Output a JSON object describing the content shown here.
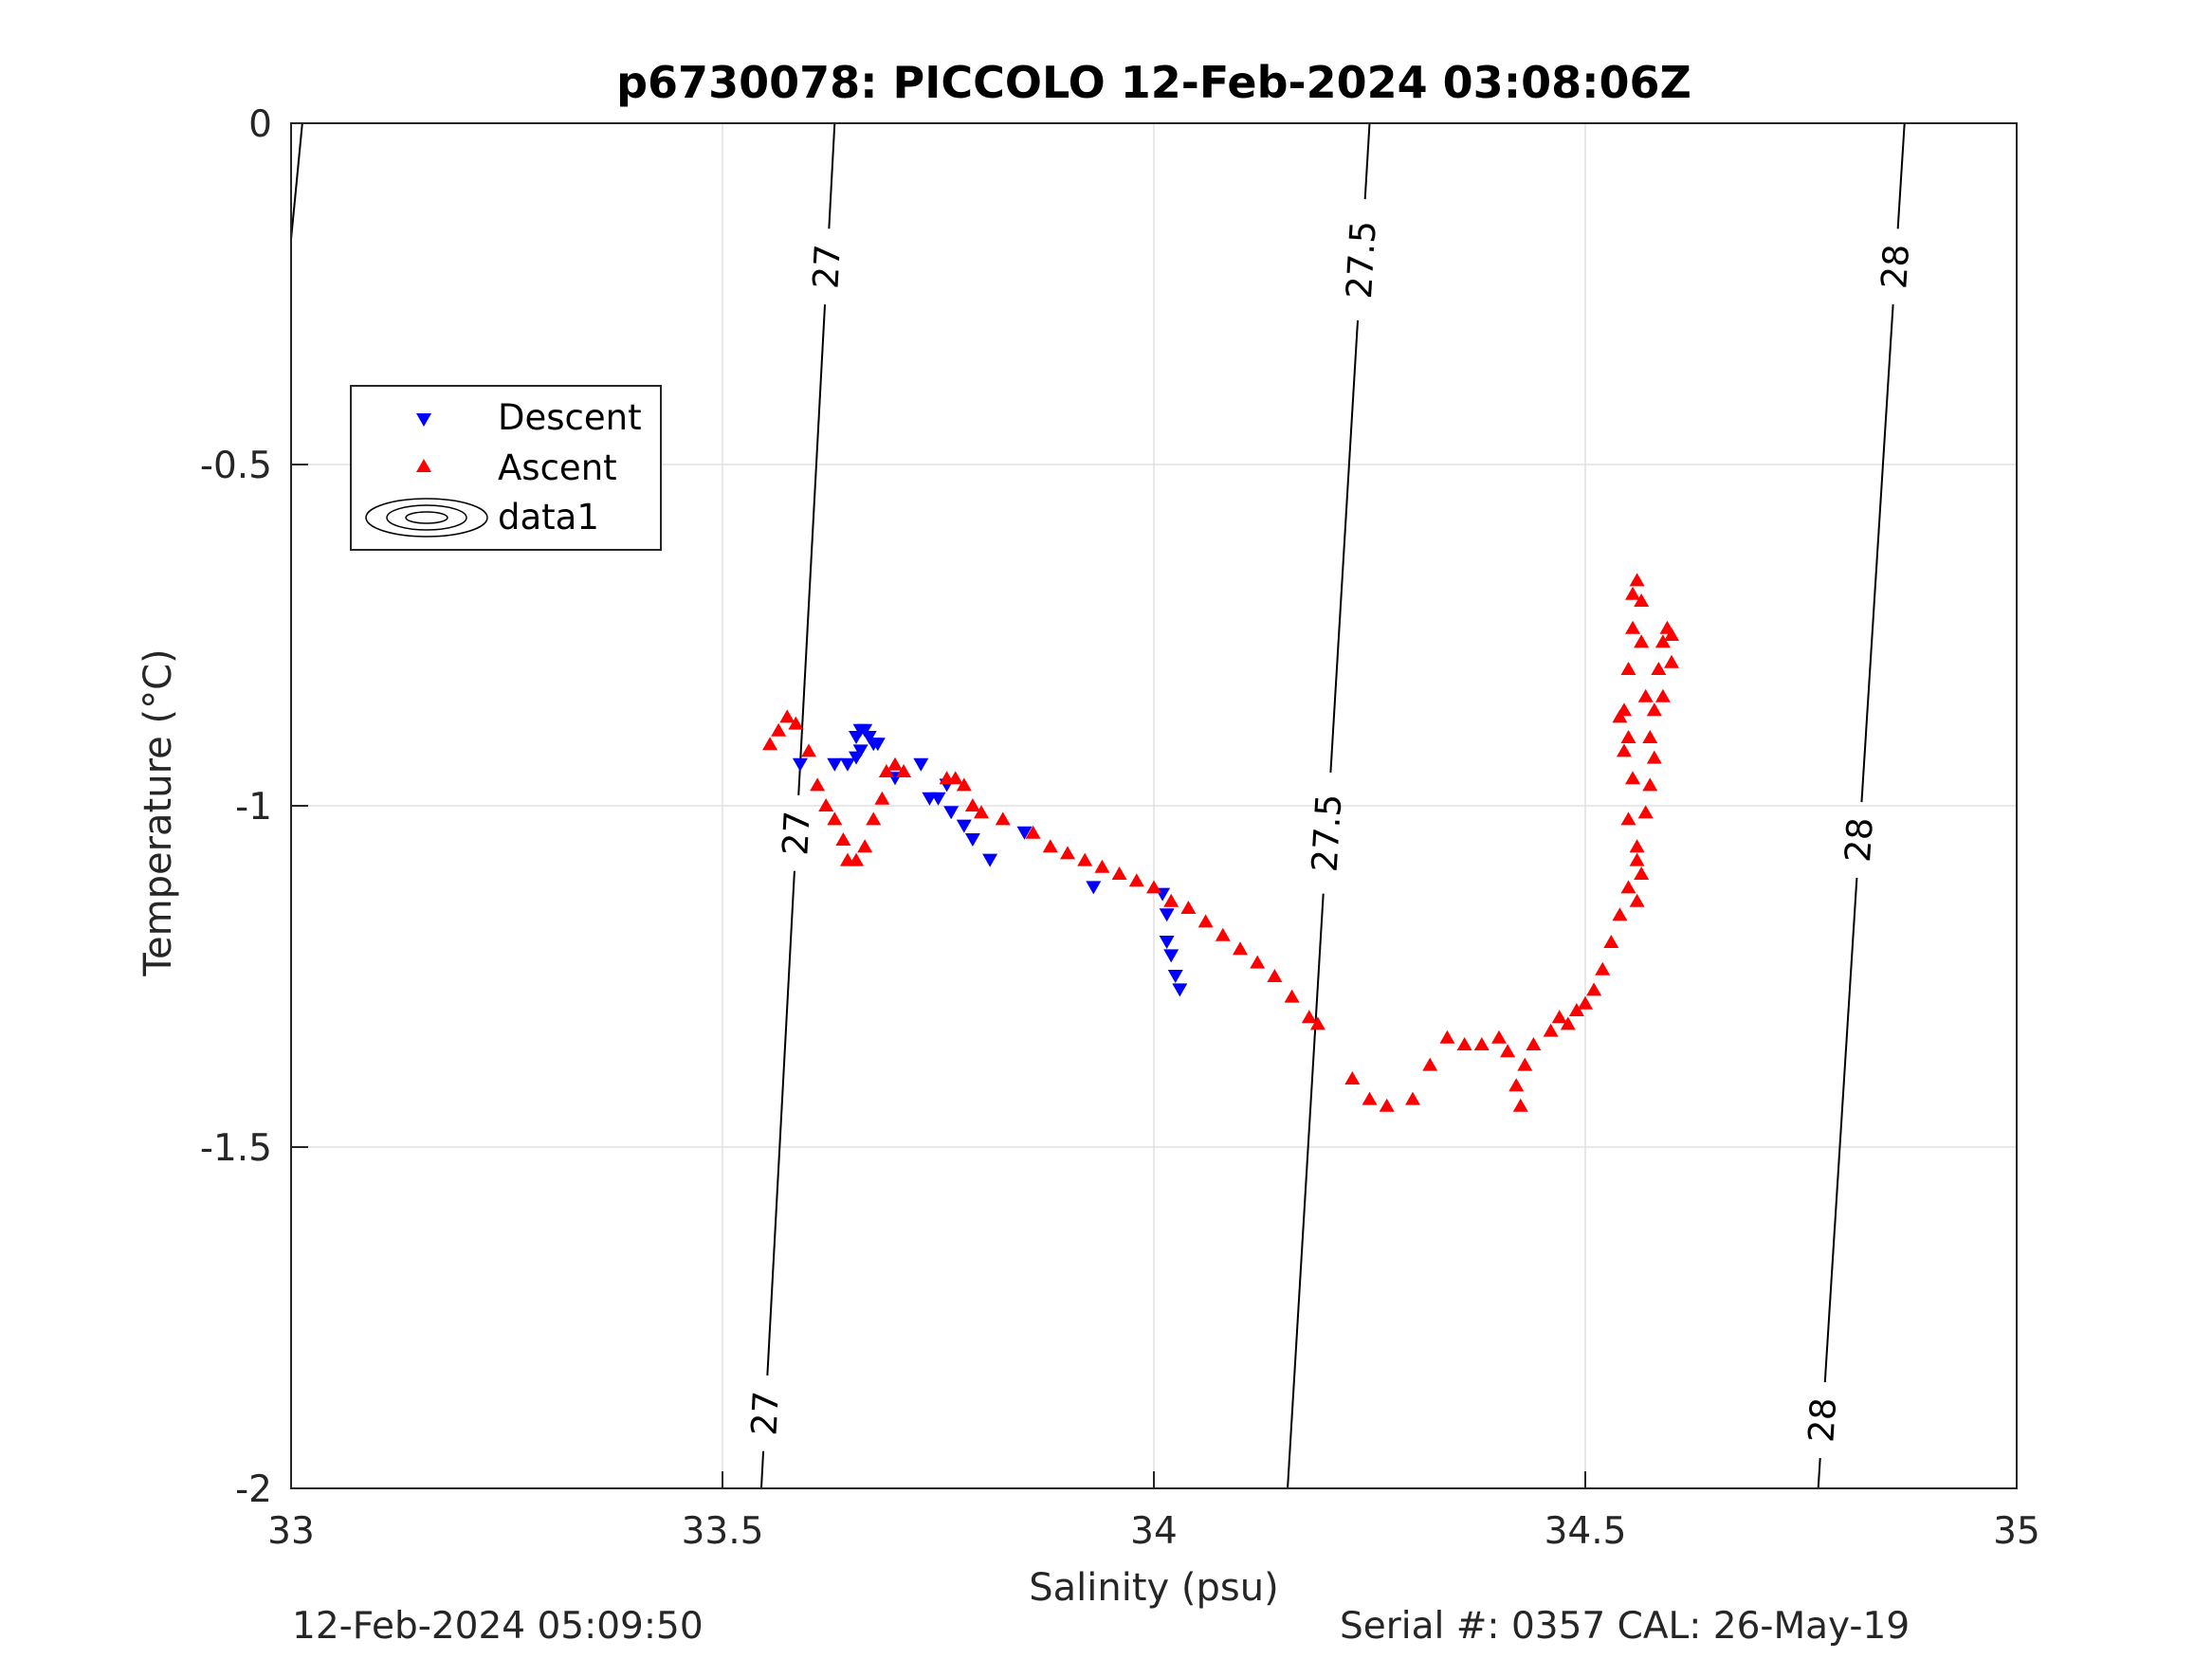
{
  "footer": {
    "timestamp": "12-Feb-2024 05:09:50",
    "serial": "Serial #: 0357  CAL: 26-May-19"
  },
  "chart_data": {
    "type": "scatter",
    "title": "p6730078: PICCOLO 12-Feb-2024 03:08:06Z",
    "xlabel": "Salinity (psu)",
    "ylabel": "Temperature (°C)",
    "xlim": [
      33,
      35
    ],
    "ylim": [
      -2,
      0
    ],
    "xticks": [
      33,
      33.5,
      34,
      34.5,
      35
    ],
    "xtick_labels": [
      "33",
      "33.5",
      "34",
      "34.5",
      "35"
    ],
    "yticks": [
      -2,
      -1.5,
      -1,
      -0.5,
      0
    ],
    "ytick_labels": [
      "-2",
      "-1.5",
      "-1",
      "-0.5",
      "0"
    ],
    "grid": true,
    "legend": {
      "position": "top-left",
      "entries": [
        "Descent",
        "Ascent",
        "data1"
      ]
    },
    "colors": {
      "descent": "#0000ff",
      "ascent": "#ff0000",
      "contour": "#000000",
      "grid": "#e0e0e0"
    },
    "contours": [
      {
        "level": 27,
        "label": "27",
        "bottom_salinity": 33.545,
        "top_salinity": 33.63,
        "label_temps": [
          -0.21,
          -1.04,
          -1.89
        ]
      },
      {
        "level": 27.5,
        "label": "27.5",
        "bottom_salinity": 34.155,
        "top_salinity": 34.25,
        "label_temps": [
          -0.2,
          -1.04
        ]
      },
      {
        "level": 28,
        "label": "28",
        "bottom_salinity": 34.77,
        "top_salinity": 34.87,
        "label_temps": [
          -0.21,
          -1.05,
          -1.9
        ]
      },
      {
        "level": 26.5,
        "label": "",
        "bottom_salinity": 33.0,
        "top_salinity": 33.013,
        "bottom_temp": -0.17,
        "label_temps": []
      }
    ],
    "series": [
      {
        "name": "Descent",
        "marker": "triangle-down",
        "points": [
          [
            33.59,
            -0.94
          ],
          [
            33.63,
            -0.94
          ],
          [
            33.645,
            -0.94
          ],
          [
            33.655,
            -0.9
          ],
          [
            33.66,
            -0.89
          ],
          [
            33.665,
            -0.89
          ],
          [
            33.67,
            -0.9
          ],
          [
            33.675,
            -0.91
          ],
          [
            33.66,
            -0.92
          ],
          [
            33.655,
            -0.93
          ],
          [
            33.68,
            -0.91
          ],
          [
            33.7,
            -0.96
          ],
          [
            33.73,
            -0.94
          ],
          [
            33.74,
            -0.99
          ],
          [
            33.75,
            -0.99
          ],
          [
            33.76,
            -0.97
          ],
          [
            33.765,
            -1.01
          ],
          [
            33.78,
            -1.03
          ],
          [
            33.79,
            -1.05
          ],
          [
            33.81,
            -1.08
          ],
          [
            33.85,
            -1.04
          ],
          [
            33.93,
            -1.12
          ],
          [
            34.01,
            -1.13
          ],
          [
            34.015,
            -1.16
          ],
          [
            34.015,
            -1.2
          ],
          [
            34.02,
            -1.22
          ],
          [
            34.025,
            -1.25
          ],
          [
            34.03,
            -1.27
          ]
        ]
      },
      {
        "name": "Ascent",
        "marker": "triangle-up",
        "points": [
          [
            33.555,
            -0.91
          ],
          [
            33.565,
            -0.89
          ],
          [
            33.575,
            -0.87
          ],
          [
            33.585,
            -0.88
          ],
          [
            33.6,
            -0.92
          ],
          [
            33.61,
            -0.97
          ],
          [
            33.62,
            -1.0
          ],
          [
            33.63,
            -1.02
          ],
          [
            33.64,
            -1.05
          ],
          [
            33.645,
            -1.08
          ],
          [
            33.655,
            -1.08
          ],
          [
            33.665,
            -1.06
          ],
          [
            33.675,
            -1.02
          ],
          [
            33.685,
            -0.99
          ],
          [
            33.69,
            -0.95
          ],
          [
            33.7,
            -0.94
          ],
          [
            33.71,
            -0.95
          ],
          [
            33.76,
            -0.96
          ],
          [
            33.77,
            -0.96
          ],
          [
            33.78,
            -0.97
          ],
          [
            33.79,
            -1.0
          ],
          [
            33.8,
            -1.01
          ],
          [
            33.825,
            -1.02
          ],
          [
            33.86,
            -1.04
          ],
          [
            33.88,
            -1.06
          ],
          [
            33.9,
            -1.07
          ],
          [
            33.92,
            -1.08
          ],
          [
            33.94,
            -1.09
          ],
          [
            33.96,
            -1.1
          ],
          [
            33.98,
            -1.11
          ],
          [
            34.0,
            -1.12
          ],
          [
            34.02,
            -1.14
          ],
          [
            34.04,
            -1.15
          ],
          [
            34.06,
            -1.17
          ],
          [
            34.08,
            -1.19
          ],
          [
            34.1,
            -1.21
          ],
          [
            34.12,
            -1.23
          ],
          [
            34.14,
            -1.25
          ],
          [
            34.16,
            -1.28
          ],
          [
            34.18,
            -1.31
          ],
          [
            34.19,
            -1.32
          ],
          [
            34.23,
            -1.4
          ],
          [
            34.25,
            -1.43
          ],
          [
            34.27,
            -1.44
          ],
          [
            34.3,
            -1.43
          ],
          [
            34.32,
            -1.38
          ],
          [
            34.34,
            -1.34
          ],
          [
            34.36,
            -1.35
          ],
          [
            34.38,
            -1.35
          ],
          [
            34.4,
            -1.34
          ],
          [
            34.41,
            -1.36
          ],
          [
            34.42,
            -1.41
          ],
          [
            34.425,
            -1.44
          ],
          [
            34.43,
            -1.38
          ],
          [
            34.44,
            -1.35
          ],
          [
            34.46,
            -1.33
          ],
          [
            34.47,
            -1.31
          ],
          [
            34.48,
            -1.32
          ],
          [
            34.49,
            -1.3
          ],
          [
            34.5,
            -1.29
          ],
          [
            34.51,
            -1.27
          ],
          [
            34.52,
            -1.24
          ],
          [
            34.53,
            -1.2
          ],
          [
            34.54,
            -1.16
          ],
          [
            34.55,
            -1.12
          ],
          [
            34.56,
            -1.08
          ],
          [
            34.55,
            -1.02
          ],
          [
            34.555,
            -0.96
          ],
          [
            34.55,
            -0.9
          ],
          [
            34.545,
            -0.86
          ],
          [
            34.55,
            -0.8
          ],
          [
            34.555,
            -0.74
          ],
          [
            34.555,
            -0.69
          ],
          [
            34.56,
            -0.67
          ],
          [
            34.565,
            -0.7
          ],
          [
            34.565,
            -0.76
          ],
          [
            34.57,
            -0.84
          ],
          [
            34.575,
            -0.9
          ],
          [
            34.58,
            -0.93
          ],
          [
            34.575,
            -0.97
          ],
          [
            34.57,
            -1.01
          ],
          [
            34.58,
            -0.86
          ],
          [
            34.585,
            -0.8
          ],
          [
            34.59,
            -0.76
          ],
          [
            34.595,
            -0.74
          ],
          [
            34.6,
            -0.75
          ],
          [
            34.6,
            -0.79
          ],
          [
            34.59,
            -0.84
          ],
          [
            34.54,
            -0.87
          ],
          [
            34.545,
            -0.92
          ],
          [
            34.56,
            -1.06
          ],
          [
            34.565,
            -1.1
          ],
          [
            34.56,
            -1.14
          ]
        ]
      }
    ]
  }
}
